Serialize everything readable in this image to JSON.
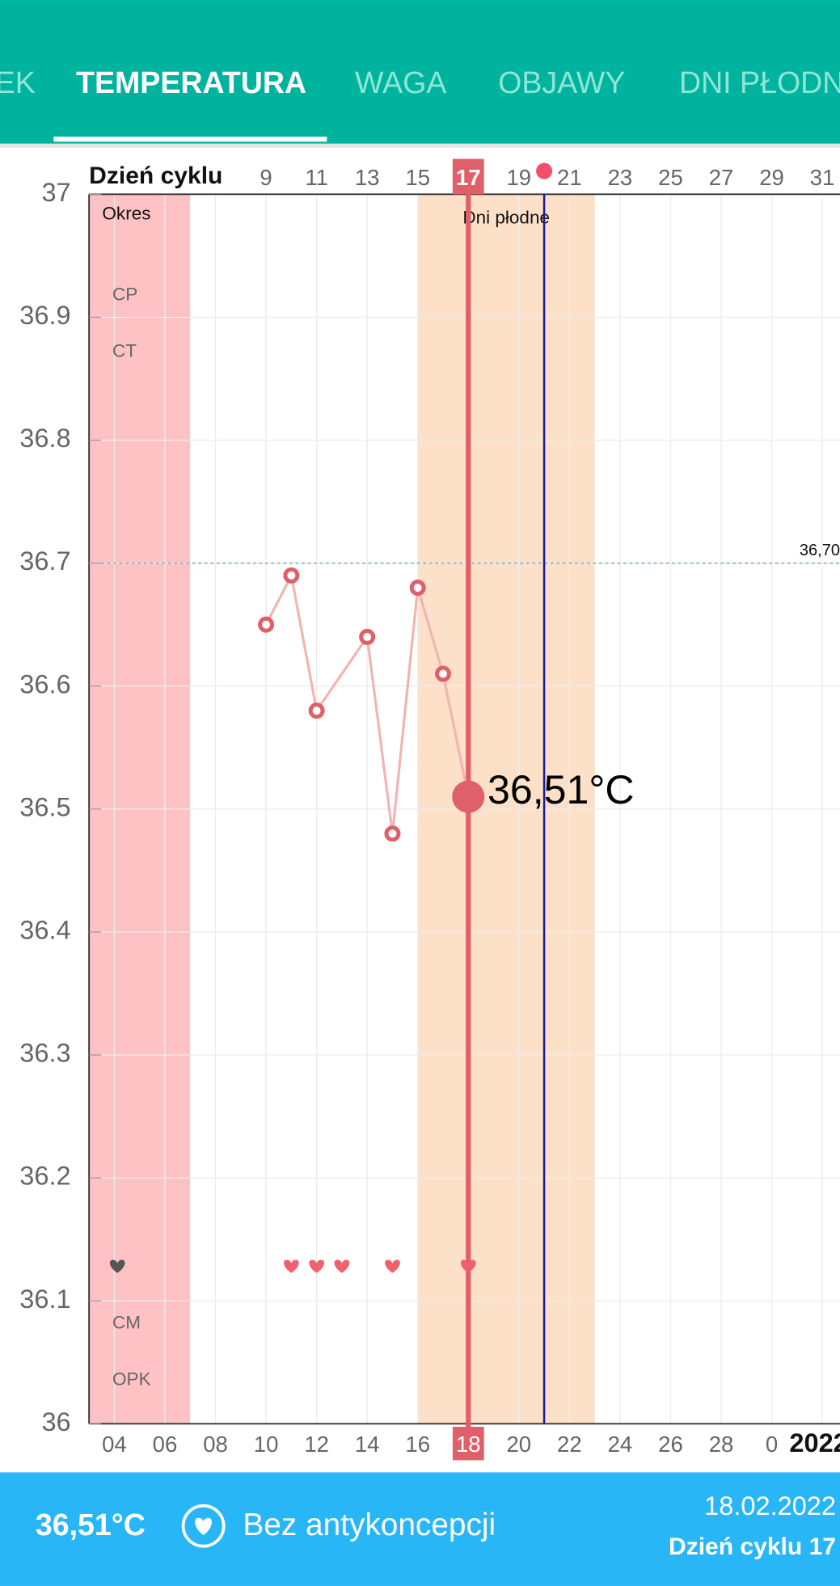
{
  "tabs": [
    "EK",
    "TEMPERATURA",
    "WAGA",
    "OBJAWY",
    "DNI PŁODN"
  ],
  "active_tab": 1,
  "chart_data": {
    "type": "line",
    "x_axis_top_label": "Dzień cyklu",
    "x": [
      9,
      10,
      11,
      13,
      14,
      15,
      16,
      17
    ],
    "series": [
      {
        "color": "#e0606a",
        "line_color": "#f2b3b3",
        "values": [
          36.65,
          36.69,
          36.58,
          36.64,
          36.48,
          36.68,
          36.61,
          36.51
        ],
        "value_labels": [
          null,
          null,
          null,
          null,
          null,
          null,
          null,
          "36,51°C"
        ]
      }
    ],
    "xlim": [
      2,
      31.7
    ],
    "ylim": [
      36,
      37
    ],
    "yticks": [
      36,
      36.1,
      36.2,
      36.3,
      36.4,
      36.5,
      36.6,
      36.7,
      36.8,
      36.9,
      37
    ],
    "xticks_top": [
      9,
      11,
      13,
      15,
      17,
      19,
      21,
      23,
      25,
      27,
      29,
      31
    ],
    "xticks": [
      {
        "value": 3,
        "label": "04"
      },
      {
        "value": 5,
        "label": "06"
      },
      {
        "value": 7,
        "label": "08"
      },
      {
        "value": 9,
        "label": "10"
      },
      {
        "value": 11,
        "label": "12"
      },
      {
        "value": 13,
        "label": "14"
      },
      {
        "value": 15,
        "label": "16"
      },
      {
        "value": 17,
        "label": "18"
      },
      {
        "value": 19,
        "label": "20"
      },
      {
        "value": 21,
        "label": "22"
      },
      {
        "value": 23,
        "label": "24"
      },
      {
        "value": 25,
        "label": "26"
      },
      {
        "value": 27,
        "label": "28"
      },
      {
        "value": 29,
        "label": "0"
      }
    ],
    "current_day": 17,
    "year_label": "2022",
    "reference_line": {
      "value": 36.7,
      "label": "36,70"
    },
    "bands": [
      {
        "label": "Okres",
        "from": 2,
        "to": 6,
        "color": "#ffc2c4"
      },
      {
        "label": "Dni płodne",
        "from": 15,
        "to": 22,
        "color": "#fde0c8"
      }
    ],
    "ovulation_day": 20,
    "ovulation_color": "#1a1aa0",
    "row_labels_top": [
      "CP",
      "CT"
    ],
    "row_labels_bottom": [
      "CM",
      "OPK"
    ],
    "intercourse_days": [
      10,
      11,
      12,
      14,
      17
    ],
    "grid": true
  },
  "footer": {
    "temperature": "36,51°C",
    "contraception": "Bez antykoncepcji",
    "date": "18.02.2022",
    "cycle_day": "Dzień cyklu 17"
  }
}
